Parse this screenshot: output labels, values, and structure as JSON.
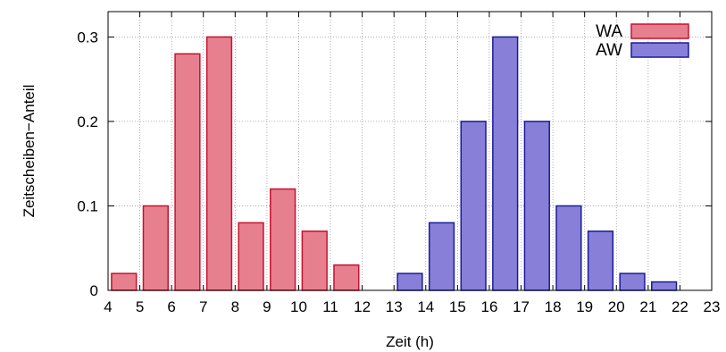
{
  "chart_data": {
    "type": "bar",
    "xlabel": "Zeit (h)",
    "ylabel": "Zeitscheiben−Anteil",
    "xlim": [
      4,
      23
    ],
    "ylim": [
      0,
      0.33
    ],
    "x_ticks": [
      "4",
      "5",
      "6",
      "7",
      "8",
      "9",
      "10",
      "11",
      "12",
      "13",
      "14",
      "15",
      "16",
      "17",
      "18",
      "19",
      "20",
      "21",
      "22",
      "23"
    ],
    "y_ticks": [
      "0",
      "0.1",
      "0.2",
      "0.3"
    ],
    "grid": true,
    "legend_position": "top-right",
    "series": [
      {
        "name": "WA",
        "color_fill": "#e6808f",
        "color_edge": "#c8102e",
        "x": [
          4.5,
          5.5,
          6.5,
          7.5,
          8.5,
          9.5,
          10.5,
          11.5,
          12.5,
          13.5,
          14.5,
          15.5,
          16.5,
          17.5,
          18.5,
          19.5,
          20.5,
          21.5,
          22.5
        ],
        "values": [
          0.02,
          0.1,
          0.28,
          0.3,
          0.08,
          0.12,
          0.07,
          0.03,
          0,
          0,
          0,
          0,
          0,
          0,
          0,
          0,
          0,
          0,
          0
        ]
      },
      {
        "name": "AW",
        "color_fill": "#8880d8",
        "color_edge": "#1a1a9a",
        "x": [
          4.5,
          5.5,
          6.5,
          7.5,
          8.5,
          9.5,
          10.5,
          11.5,
          12.5,
          13.5,
          14.5,
          15.5,
          16.5,
          17.5,
          18.5,
          19.5,
          20.5,
          21.5,
          22.5
        ],
        "values": [
          0,
          0,
          0,
          0,
          0,
          0,
          0,
          0,
          0,
          0.02,
          0.08,
          0.2,
          0.3,
          0.2,
          0.1,
          0.07,
          0.02,
          0.01,
          0
        ]
      }
    ]
  }
}
